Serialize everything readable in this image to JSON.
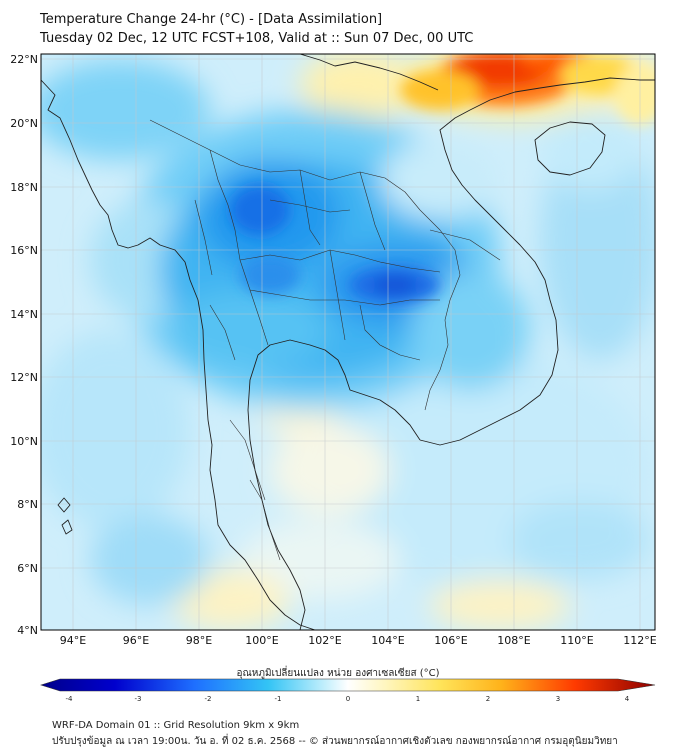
{
  "title": {
    "line1": "Temperature Change 24-hr (°C) - [Data Assimilation]",
    "line2": "Tuesday 02 Dec, 12 UTC FCST+108, Valid at :: Sun 07 Dec, 00 UTC"
  },
  "map": {
    "lat_labels": [
      "22°N",
      "20°N",
      "18°N",
      "16°N",
      "14°N",
      "12°N",
      "10°N",
      "8°N",
      "6°N",
      "4°N"
    ],
    "lon_labels": [
      "94°E",
      "96°E",
      "98°E",
      "100°E",
      "102°E",
      "104°E",
      "106°E",
      "108°E",
      "110°E",
      "112°E"
    ],
    "lat_range": [
      4,
      22
    ],
    "lon_range": [
      93,
      112.5
    ]
  },
  "colorbar": {
    "label": "อุณหภูมิเปลี่ยนแปลง หน่วย องศาเซลเซียส (°C)",
    "ticks": [
      "-4",
      "-3",
      "-2",
      "-1",
      "0",
      "1",
      "2",
      "3",
      "4"
    ],
    "range": [
      -4,
      4
    ],
    "colors": {
      "cold_end": "#00008b",
      "cool": "#1e90ff",
      "cyan": "#7fdcff",
      "neutral": "#ffffff",
      "warm": "#ffec80",
      "hot": "#ff8c00",
      "hot_end": "#8b0000"
    }
  },
  "footer": {
    "line1": "WRF-DA Domain 01 :: Grid Resolution 9km x 9km",
    "line2": "ปรับปรุงข้อมูล ณ เวลา 19:00น. วัน อ. ที่ 02 ธ.ค. 2568 -- © ส่วนพยากรณ์อากาศเชิงตัวเลข กองพยากรณ์อากาศ กรมอุตุนิยมวิทยา"
  }
}
